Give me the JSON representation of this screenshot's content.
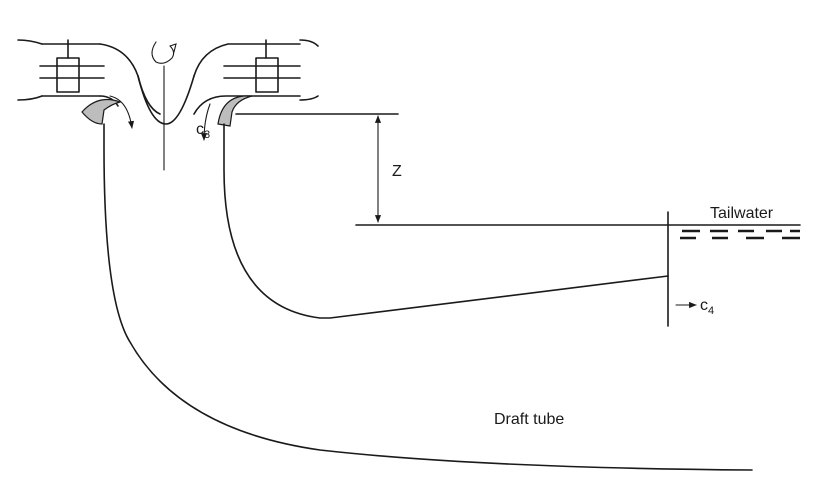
{
  "labels": {
    "z": "Z",
    "tailwater": "Tailwater",
    "c3_main": "c",
    "c3_sub": "3",
    "c4_main": "c",
    "c4_sub": "4",
    "draft_tube": "Draft tube"
  }
}
